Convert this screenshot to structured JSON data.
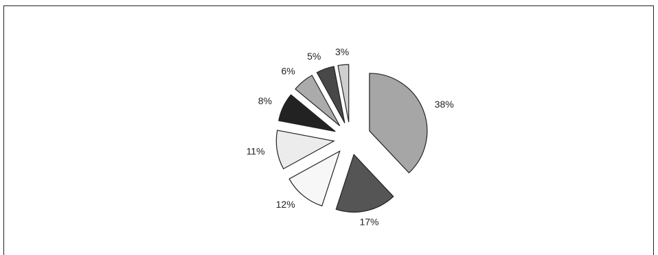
{
  "chart_data": {
    "type": "pie",
    "values": [
      38,
      17,
      12,
      11,
      8,
      6,
      5,
      3
    ],
    "value_labels": [
      "38%",
      "17%",
      "12%",
      "11%",
      "8%",
      "6%",
      "5%",
      "3%"
    ],
    "colors": [
      "#a6a6a6",
      "#555555",
      "#f7f7f7",
      "#ececec",
      "#222222",
      "#ababab",
      "#484848",
      "#cfcfcf"
    ]
  }
}
